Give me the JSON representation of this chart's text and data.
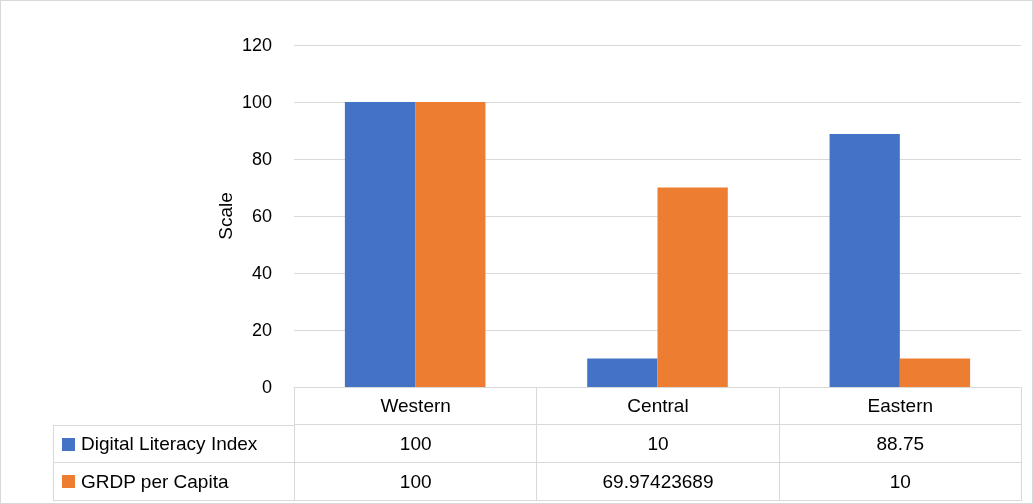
{
  "chart_data": {
    "type": "bar",
    "ylabel": "Scale",
    "categories": [
      "Western",
      "Central",
      "Eastern"
    ],
    "series": [
      {
        "name": "Digital Literacy Index",
        "color": "#4472c4",
        "values": [
          100,
          10,
          88.75
        ]
      },
      {
        "name": "GRDP per Capita",
        "color": "#ed7d31",
        "values": [
          100,
          69.97423689,
          10
        ]
      }
    ],
    "ylim": [
      0,
      120
    ],
    "yticks": [
      0,
      20,
      40,
      60,
      80,
      100,
      120
    ],
    "grid": "y",
    "data_labels": true,
    "legend": "bottom left"
  }
}
